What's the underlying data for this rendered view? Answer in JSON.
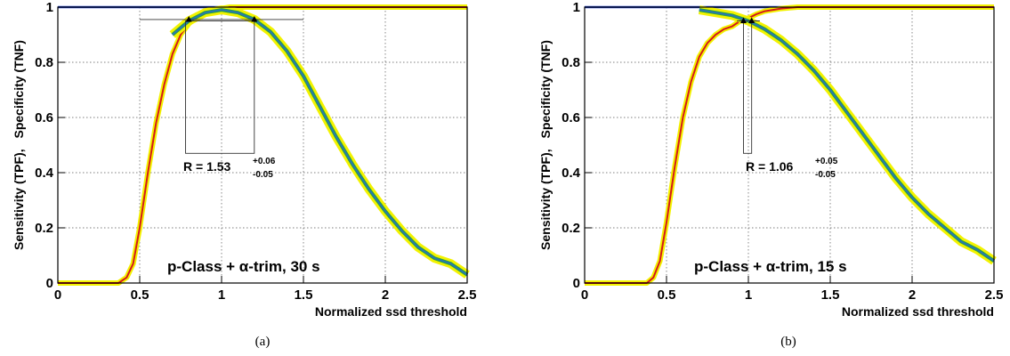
{
  "colors": {
    "specificity": "#1a3ccf",
    "sensitivity": "#d41a1a",
    "band": "#f2f200",
    "median": "#2a70c0",
    "band_edge": "#28a048"
  },
  "chart_data": [
    {
      "type": "line",
      "caption": "(a)",
      "annotation": "p-Class + α-trim, 30 s",
      "ratio": {
        "label": "R = ",
        "value": "1.53",
        "plus": "+0.06",
        "minus": "-0.05"
      },
      "xlabel": "Normalized ssd threshold",
      "ylabel_parts": [
        "Sensitivity (TPF),",
        "Specificity (TNF)"
      ],
      "xlim": [
        0,
        2.5
      ],
      "ylim": [
        0,
        1
      ],
      "xticks": [
        0,
        0.5,
        1,
        1.5,
        2,
        2.5
      ],
      "xtick_labels": [
        "0",
        "0.5",
        "1",
        "1.5",
        "2",
        "2.5"
      ],
      "yticks": [
        0,
        0.2,
        0.4,
        0.6,
        0.8,
        1
      ],
      "ytick_labels": [
        "0",
        "0.2",
        "0.4",
        "0.6",
        "0.8",
        "1"
      ],
      "grid": true,
      "box": {
        "x0": 0.78,
        "x1": 1.2,
        "y0": 0.47,
        "y1": 0.95
      },
      "ref_line": {
        "x0": 0.5,
        "x1": 1.5,
        "y": 0.955
      },
      "markers": [
        {
          "x": 0.8,
          "y": 0.955
        },
        {
          "x": 1.2,
          "y": 0.955
        }
      ],
      "series": [
        {
          "role": "specificity",
          "x": [
            0,
            0.6,
            0.8,
            0.9,
            1.0,
            1.1,
            1.2,
            1.3,
            2.5
          ],
          "values": [
            1,
            1,
            1,
            1,
            1,
            1,
            1,
            1,
            1
          ]
        },
        {
          "role": "sensitivity",
          "x": [
            0,
            0.37,
            0.42,
            0.46,
            0.5,
            0.55,
            0.6,
            0.65,
            0.7,
            0.75,
            0.8,
            0.85,
            0.9,
            0.95,
            1.0,
            1.05,
            1.1,
            1.2,
            1.3,
            2.5
          ],
          "values": [
            0,
            0,
            0.02,
            0.07,
            0.2,
            0.4,
            0.58,
            0.72,
            0.83,
            0.9,
            0.94,
            0.965,
            0.98,
            0.99,
            0.995,
            1,
            1,
            1,
            1,
            1
          ]
        },
        {
          "role": "specificity-band",
          "x": [
            0.7,
            0.8,
            0.9,
            1.0,
            1.1,
            1.2,
            1.3,
            1.4,
            1.5,
            1.6,
            1.7,
            1.8,
            1.9,
            2.0,
            2.1,
            2.2,
            2.3,
            2.4,
            2.5
          ],
          "values": [
            0.9,
            0.95,
            0.98,
            0.99,
            0.98,
            0.955,
            0.91,
            0.84,
            0.75,
            0.64,
            0.53,
            0.43,
            0.34,
            0.26,
            0.19,
            0.13,
            0.09,
            0.07,
            0.03
          ]
        }
      ]
    },
    {
      "type": "line",
      "caption": "(b)",
      "annotation": "p-Class + α-trim, 15 s",
      "ratio": {
        "label": "R = ",
        "value": "1.06",
        "plus": "+0.05",
        "minus": "-0.05"
      },
      "xlabel": "Normalized ssd threshold",
      "ylabel_parts": [
        "Sensitivity (TPF),",
        "Specificity (TNF)"
      ],
      "xlim": [
        0,
        2.5
      ],
      "ylim": [
        0,
        1
      ],
      "xticks": [
        0,
        0.5,
        1,
        1.5,
        2,
        2.5
      ],
      "xtick_labels": [
        "0",
        "0.5",
        "1",
        "1.5",
        "2",
        "2.5"
      ],
      "yticks": [
        0,
        0.2,
        0.4,
        0.6,
        0.8,
        1
      ],
      "ytick_labels": [
        "0",
        "0.2",
        "0.4",
        "0.6",
        "0.8",
        "1"
      ],
      "grid": true,
      "box": {
        "x0": 0.97,
        "x1": 1.02,
        "y0": 0.47,
        "y1": 0.95
      },
      "ref_line": {
        "x0": 0.93,
        "x1": 1.07,
        "y": 0.95
      },
      "markers": [
        {
          "x": 0.97,
          "y": 0.95
        },
        {
          "x": 1.02,
          "y": 0.95
        }
      ],
      "series": [
        {
          "role": "specificity",
          "x": [
            0,
            0.7,
            2.5
          ],
          "values": [
            1,
            1,
            1
          ]
        },
        {
          "role": "sensitivity",
          "x": [
            0,
            0.38,
            0.42,
            0.46,
            0.5,
            0.55,
            0.6,
            0.65,
            0.7,
            0.75,
            0.8,
            0.85,
            0.9,
            0.95,
            1.0,
            1.05,
            1.1,
            1.2,
            1.3,
            2.5
          ],
          "values": [
            0,
            0,
            0.02,
            0.08,
            0.22,
            0.42,
            0.6,
            0.73,
            0.82,
            0.87,
            0.9,
            0.92,
            0.93,
            0.95,
            0.96,
            0.975,
            0.985,
            0.995,
            1,
            1
          ]
        },
        {
          "role": "specificity-band",
          "x": [
            0.7,
            0.8,
            0.9,
            1.0,
            1.1,
            1.2,
            1.3,
            1.4,
            1.5,
            1.6,
            1.7,
            1.8,
            1.9,
            2.0,
            2.1,
            2.2,
            2.3,
            2.4,
            2.5
          ],
          "values": [
            0.99,
            0.98,
            0.97,
            0.95,
            0.92,
            0.88,
            0.83,
            0.77,
            0.7,
            0.62,
            0.54,
            0.46,
            0.38,
            0.31,
            0.25,
            0.2,
            0.15,
            0.12,
            0.08
          ]
        }
      ]
    }
  ]
}
